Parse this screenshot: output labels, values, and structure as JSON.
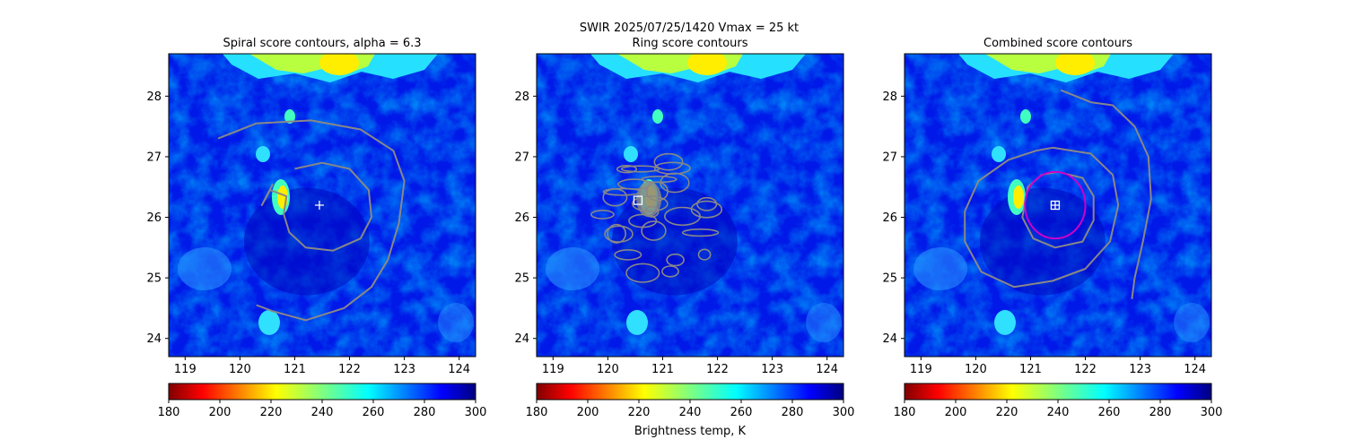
{
  "figure": {
    "suptitle_line1": "SWIR  2025/07/25/1420    Vmax = 25 kt",
    "colorbar_label": "Brightness temp, K"
  },
  "chart_data": [
    {
      "type": "heatmap",
      "title": "Spiral score contours, alpha =  6.3",
      "xlim": [
        118.7,
        124.3
      ],
      "ylim": [
        23.7,
        28.7
      ],
      "xticks": [
        119,
        120,
        121,
        122,
        123,
        124
      ],
      "yticks": [
        24,
        25,
        26,
        27,
        28
      ],
      "center_marker": {
        "shape": "plus",
        "lon": 121.45,
        "lat": 26.2
      },
      "spiral_contour": [
        [
          119.6,
          27.3
        ],
        [
          120.3,
          27.55
        ],
        [
          121.3,
          27.6
        ],
        [
          122.2,
          27.45
        ],
        [
          122.8,
          27.1
        ],
        [
          123.0,
          26.6
        ],
        [
          122.9,
          25.9
        ],
        [
          122.7,
          25.3
        ],
        [
          122.4,
          24.85
        ],
        [
          121.9,
          24.5
        ],
        [
          121.2,
          24.3
        ],
        [
          120.6,
          24.45
        ],
        [
          120.3,
          24.55
        ]
      ],
      "ring_contour": [
        [
          121.0,
          26.8
        ],
        [
          121.5,
          26.9
        ],
        [
          122.0,
          26.8
        ],
        [
          122.35,
          26.45
        ],
        [
          122.4,
          26.0
        ],
        [
          122.2,
          25.65
        ],
        [
          121.7,
          25.45
        ],
        [
          121.2,
          25.5
        ],
        [
          120.9,
          25.75
        ],
        [
          120.8,
          26.05
        ],
        [
          120.85,
          26.35
        ],
        [
          120.55,
          26.45
        ],
        [
          120.4,
          26.2
        ],
        [
          120.6,
          26.55
        ]
      ],
      "colorbar": {
        "cmap": "jet_r",
        "vmin": 180,
        "vmax": 300,
        "ticks": [
          180,
          200,
          220,
          240,
          260,
          280,
          300
        ]
      }
    },
    {
      "type": "heatmap",
      "title": "Ring score contours",
      "xlim": [
        118.7,
        124.3
      ],
      "ylim": [
        23.7,
        28.7
      ],
      "xticks": [
        119,
        120,
        121,
        122,
        123,
        124
      ],
      "yticks": [
        24,
        25,
        26,
        27,
        28
      ],
      "center_marker": {
        "shape": "square",
        "lon": 120.55,
        "lat": 26.28
      },
      "ring_region": {
        "lon": 121.0,
        "lat": 26.0,
        "rx_deg": 1.3,
        "ry_deg": 1.15
      },
      "colorbar": {
        "cmap": "jet_r",
        "vmin": 180,
        "vmax": 300,
        "ticks": [
          180,
          200,
          220,
          240,
          260,
          280,
          300
        ]
      }
    },
    {
      "type": "heatmap",
      "title": "Combined score contours",
      "xlim": [
        118.7,
        124.3
      ],
      "ylim": [
        23.7,
        28.7
      ],
      "xticks": [
        119,
        120,
        121,
        122,
        123,
        124
      ],
      "yticks": [
        24,
        25,
        26,
        27,
        28
      ],
      "center_marker": {
        "shape": "square-plus",
        "lon": 121.45,
        "lat": 26.2
      },
      "circle_marker": {
        "color": "#cc00cc",
        "lon": 121.45,
        "lat": 26.2,
        "radius_deg": 0.55
      },
      "inner_contour": [
        [
          121.5,
          26.75
        ],
        [
          121.95,
          26.65
        ],
        [
          122.15,
          26.35
        ],
        [
          122.15,
          25.95
        ],
        [
          121.95,
          25.6
        ],
        [
          121.45,
          25.5
        ],
        [
          121.05,
          25.65
        ],
        [
          120.85,
          26.0
        ],
        [
          120.95,
          26.5
        ],
        [
          121.2,
          26.7
        ],
        [
          121.5,
          26.75
        ]
      ],
      "outer_contour": [
        [
          121.4,
          27.15
        ],
        [
          122.1,
          27.05
        ],
        [
          122.5,
          26.7
        ],
        [
          122.6,
          26.2
        ],
        [
          122.45,
          25.6
        ],
        [
          122.0,
          25.15
        ],
        [
          121.4,
          24.95
        ],
        [
          120.7,
          24.85
        ],
        [
          120.1,
          25.1
        ],
        [
          119.8,
          25.6
        ],
        [
          119.8,
          26.1
        ],
        [
          120.05,
          26.6
        ],
        [
          120.6,
          26.95
        ],
        [
          121.1,
          27.1
        ],
        [
          121.4,
          27.15
        ]
      ],
      "tail_contour": [
        [
          121.55,
          28.1
        ],
        [
          122.1,
          27.9
        ],
        [
          122.5,
          27.85
        ],
        [
          122.9,
          27.5
        ],
        [
          123.15,
          27.0
        ],
        [
          123.2,
          26.3
        ],
        [
          123.05,
          25.6
        ],
        [
          122.9,
          25.0
        ],
        [
          122.85,
          24.65
        ]
      ],
      "colorbar": {
        "cmap": "jet_r",
        "vmin": 180,
        "vmax": 300,
        "ticks": [
          180,
          200,
          220,
          240,
          260,
          280,
          300
        ]
      }
    }
  ]
}
